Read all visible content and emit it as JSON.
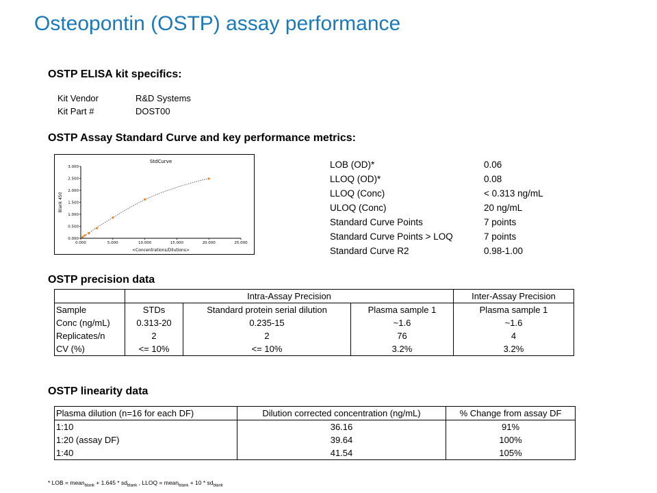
{
  "title": "Osteopontin (OSTP) assay performance",
  "kit_heading": "OSTP ELISA kit specifics:",
  "kit": [
    {
      "key": "Kit Vendor",
      "value": "R&D Systems"
    },
    {
      "key": "Kit Part #",
      "value": "DOST00"
    }
  ],
  "curve_heading": "OSTP Assay Standard Curve and key performance metrics:",
  "metrics": [
    {
      "key": "LOB (OD)*",
      "value": "0.06"
    },
    {
      "key": "LLOQ (OD)*",
      "value": "0.08"
    },
    {
      "key": "LLOQ (Conc)",
      "value": "< 0.313 ng/mL"
    },
    {
      "key": "ULOQ (Conc)",
      "value": "20 ng/mL"
    },
    {
      "key": "Standard Curve Points",
      "value": "7 points"
    },
    {
      "key": "Standard Curve Points > LOQ",
      "value": "7 points"
    },
    {
      "key": "Standard Curve R2",
      "value": "0.98-1.00"
    }
  ],
  "chart_data": {
    "type": "scatter",
    "title": "StdCurve",
    "xlabel": "<Concentrations/Dilutions>",
    "ylabel": "Blank 450",
    "xlim": [
      0,
      25
    ],
    "ylim": [
      0,
      3
    ],
    "x_ticks": [
      "0.000",
      "5.000",
      "10.000",
      "15.000",
      "20.000",
      "25.000"
    ],
    "y_ticks": [
      "0.000",
      "0.500",
      "1.000",
      "1.500",
      "2.000",
      "2.500",
      "3.000"
    ],
    "points": [
      {
        "x": 0.313,
        "y": 0.06
      },
      {
        "x": 0.625,
        "y": 0.12
      },
      {
        "x": 1.25,
        "y": 0.21
      },
      {
        "x": 2.5,
        "y": 0.42
      },
      {
        "x": 5.0,
        "y": 0.86
      },
      {
        "x": 10.0,
        "y": 1.62
      },
      {
        "x": 20.0,
        "y": 2.49
      }
    ],
    "fit": [
      {
        "x": 0,
        "y": 0.0
      },
      {
        "x": 2.5,
        "y": 0.45
      },
      {
        "x": 5,
        "y": 0.86
      },
      {
        "x": 7.5,
        "y": 1.26
      },
      {
        "x": 10,
        "y": 1.62
      },
      {
        "x": 12.5,
        "y": 1.9
      },
      {
        "x": 15,
        "y": 2.13
      },
      {
        "x": 17.5,
        "y": 2.33
      },
      {
        "x": 20,
        "y": 2.5
      }
    ],
    "point_color": "#e8821e",
    "fit_color": "#555555",
    "grid": false
  },
  "precision_heading": "OSTP precision data",
  "precision": {
    "group_headers": [
      "",
      "Intra-Assay Precision",
      "Inter-Assay Precision"
    ],
    "columns": [
      "Sample",
      "STDs",
      "Standard protein serial dilution",
      "Plasma sample 1",
      "Plasma sample 1"
    ],
    "rows": [
      [
        "Conc (ng/mL)",
        "0.313-20",
        "0.235-15",
        "~1.6",
        "~1.6"
      ],
      [
        "Replicates/n",
        "2",
        "2",
        "76",
        "4"
      ],
      [
        "CV (%)",
        "<= 10%",
        "<= 10%",
        "3.2%",
        "3.2%"
      ]
    ]
  },
  "linearity_heading": "OSTP linearity data",
  "linearity": {
    "columns": [
      "Plasma dilution (n=16 for each DF)",
      "Dilution corrected concentration (ng/mL)",
      "% Change from assay DF"
    ],
    "rows": [
      [
        "1:10",
        "36.16",
        "91%"
      ],
      [
        "1:20 (assay DF)",
        "39.64",
        "100%"
      ],
      [
        "1:40",
        "41.54",
        "105%"
      ]
    ]
  },
  "footnote": {
    "p1": "* LOB = mean",
    "s1": "blank",
    "p2": " + 1.645 * sd",
    "s2": "blank",
    "p3": " , LLOQ = mean",
    "s3": "blank",
    "p4": " + 10 * sd",
    "s4": "blank"
  },
  "colors": {
    "title": "#1a79b9"
  }
}
